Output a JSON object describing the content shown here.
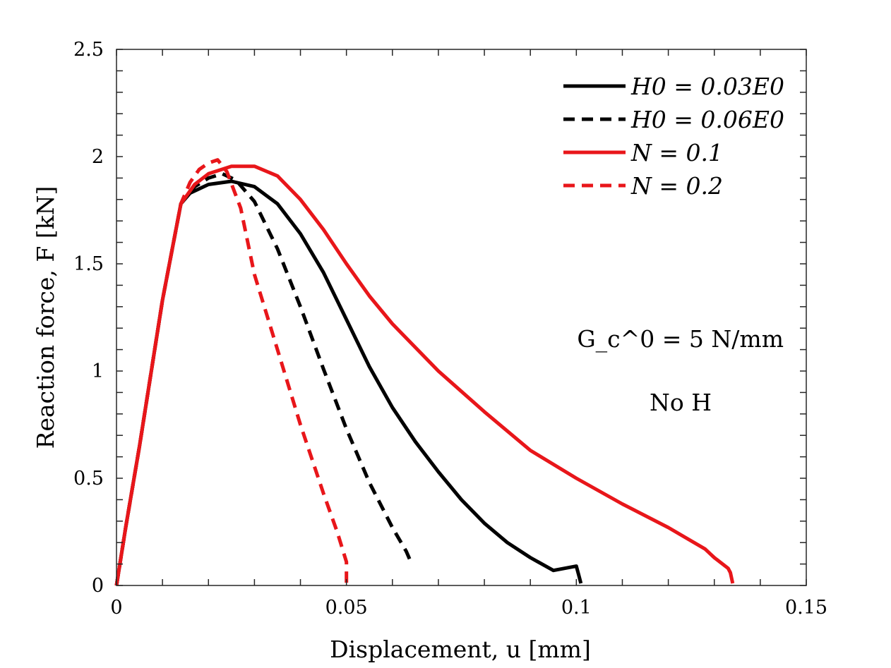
{
  "chart_data": {
    "type": "line",
    "title": "",
    "xlabel": "Displacement, u [mm]",
    "ylabel": "Reaction force, F [kN]",
    "xlim": [
      0,
      0.15
    ],
    "ylim": [
      0,
      2.5
    ],
    "x_ticks": [
      0,
      0.05,
      0.1,
      0.15
    ],
    "x_tick_labels": [
      "0",
      "0.05",
      "0.1",
      "0.15"
    ],
    "y_ticks": [
      0,
      0.5,
      1,
      1.5,
      2,
      2.5
    ],
    "y_tick_labels": [
      "0",
      "0.5",
      "1",
      "1.5",
      "2",
      "2.5"
    ],
    "grid": false,
    "legend_position": "top-right",
    "annotations": [
      "G_c^0 = 5 N/mm",
      "No H"
    ],
    "series": [
      {
        "name": "H0 = 0.03E0",
        "color": "#000000",
        "dash": "solid",
        "points": [
          [
            0,
            0
          ],
          [
            0.002,
            0.27
          ],
          [
            0.005,
            0.65
          ],
          [
            0.01,
            1.33
          ],
          [
            0.014,
            1.78
          ],
          [
            0.016,
            1.83
          ],
          [
            0.02,
            1.87
          ],
          [
            0.025,
            1.885
          ],
          [
            0.03,
            1.86
          ],
          [
            0.035,
            1.78
          ],
          [
            0.04,
            1.64
          ],
          [
            0.045,
            1.46
          ],
          [
            0.05,
            1.24
          ],
          [
            0.055,
            1.02
          ],
          [
            0.06,
            0.83
          ],
          [
            0.065,
            0.67
          ],
          [
            0.07,
            0.53
          ],
          [
            0.075,
            0.4
          ],
          [
            0.08,
            0.29
          ],
          [
            0.085,
            0.2
          ],
          [
            0.09,
            0.13
          ],
          [
            0.095,
            0.07
          ],
          [
            0.1,
            0.09
          ],
          [
            0.1005,
            0.05
          ],
          [
            0.101,
            0.01
          ]
        ]
      },
      {
        "name": "H0 = 0.06E0",
        "color": "#000000",
        "dash": "dashed",
        "points": [
          [
            0,
            0
          ],
          [
            0.002,
            0.27
          ],
          [
            0.005,
            0.65
          ],
          [
            0.01,
            1.33
          ],
          [
            0.014,
            1.78
          ],
          [
            0.017,
            1.86
          ],
          [
            0.02,
            1.9
          ],
          [
            0.023,
            1.92
          ],
          [
            0.026,
            1.89
          ],
          [
            0.03,
            1.79
          ],
          [
            0.035,
            1.57
          ],
          [
            0.04,
            1.3
          ],
          [
            0.045,
            1.01
          ],
          [
            0.05,
            0.73
          ],
          [
            0.055,
            0.48
          ],
          [
            0.06,
            0.27
          ],
          [
            0.063,
            0.16
          ],
          [
            0.064,
            0.11
          ]
        ]
      },
      {
        "name": "N = 0.1",
        "color": "#e8161a",
        "dash": "solid",
        "points": [
          [
            0,
            0
          ],
          [
            0.002,
            0.27
          ],
          [
            0.005,
            0.65
          ],
          [
            0.01,
            1.33
          ],
          [
            0.014,
            1.78
          ],
          [
            0.017,
            1.87
          ],
          [
            0.02,
            1.92
          ],
          [
            0.025,
            1.955
          ],
          [
            0.03,
            1.955
          ],
          [
            0.035,
            1.91
          ],
          [
            0.04,
            1.8
          ],
          [
            0.045,
            1.66
          ],
          [
            0.05,
            1.5
          ],
          [
            0.055,
            1.35
          ],
          [
            0.06,
            1.22
          ],
          [
            0.07,
            1.0
          ],
          [
            0.08,
            0.81
          ],
          [
            0.09,
            0.63
          ],
          [
            0.1,
            0.5
          ],
          [
            0.11,
            0.38
          ],
          [
            0.12,
            0.27
          ],
          [
            0.128,
            0.17
          ],
          [
            0.129,
            0.15
          ],
          [
            0.13,
            0.13
          ],
          [
            0.133,
            0.08
          ],
          [
            0.1335,
            0.06
          ],
          [
            0.134,
            0.01
          ]
        ]
      },
      {
        "name": "N = 0.2",
        "color": "#e8161a",
        "dash": "dashed",
        "points": [
          [
            0,
            0
          ],
          [
            0.002,
            0.27
          ],
          [
            0.005,
            0.65
          ],
          [
            0.01,
            1.33
          ],
          [
            0.014,
            1.78
          ],
          [
            0.016,
            1.88
          ],
          [
            0.018,
            1.94
          ],
          [
            0.02,
            1.97
          ],
          [
            0.022,
            1.985
          ],
          [
            0.024,
            1.93
          ],
          [
            0.027,
            1.76
          ],
          [
            0.03,
            1.45
          ],
          [
            0.035,
            1.1
          ],
          [
            0.04,
            0.75
          ],
          [
            0.045,
            0.43
          ],
          [
            0.048,
            0.25
          ],
          [
            0.05,
            0.11
          ],
          [
            0.05,
            0.01
          ]
        ]
      }
    ]
  }
}
